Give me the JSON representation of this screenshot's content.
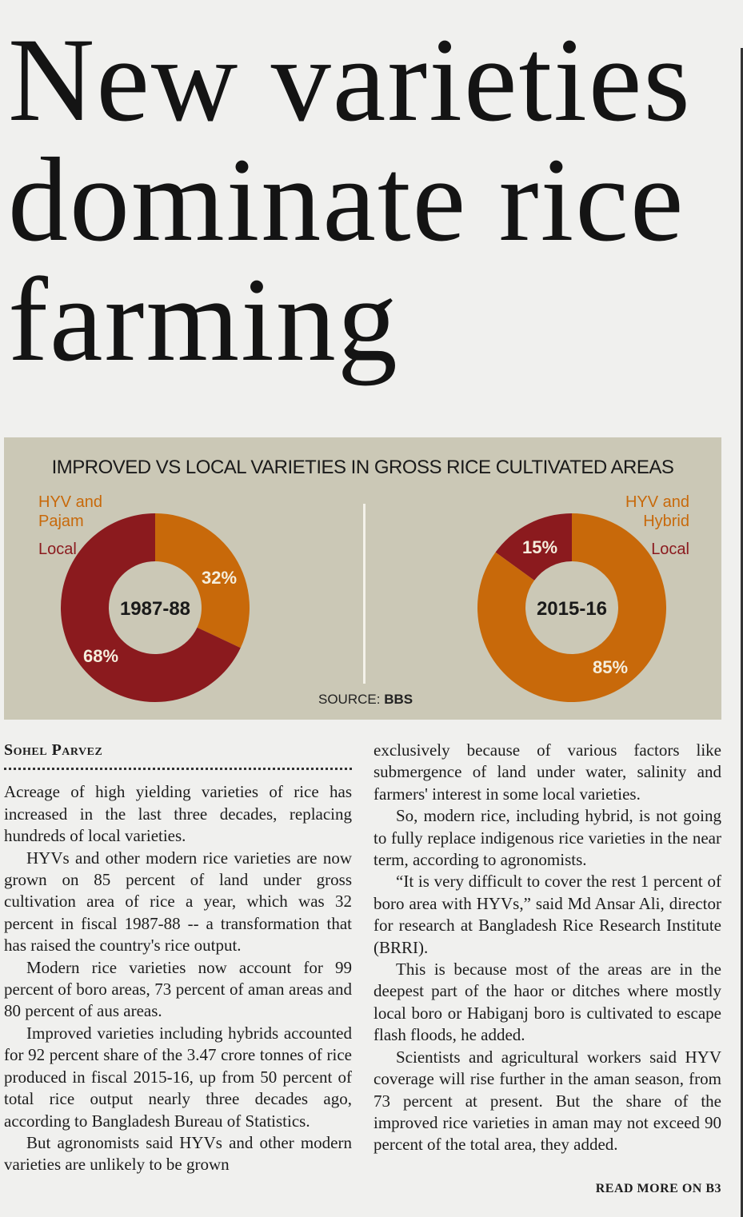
{
  "headline": "New varieties dominate rice farming",
  "chart_data": {
    "type": "pie",
    "title": "IMPROVED VS LOCAL VARIETIES IN GROSS RICE CULTIVATED AREAS",
    "source_label": "SOURCE:",
    "source": "BBS",
    "colors": {
      "improved": "#c8690a",
      "local": "#8b1a1e"
    },
    "charts": [
      {
        "period": "1987-88",
        "improved_label": "HYV and Pajam",
        "local_label": "Local",
        "improved": 32,
        "local": 68,
        "improved_text": "32%",
        "local_text": "68%"
      },
      {
        "period": "2015-16",
        "improved_label": "HYV and Hybrid",
        "local_label": "Local",
        "improved": 85,
        "local": 15,
        "improved_text": "85%",
        "local_text": "15%"
      }
    ]
  },
  "article": {
    "byline": "Sohel Parvez",
    "left_paragraphs": [
      "Acreage of high yielding varieties of rice has increased in the last three decades, replacing hundreds of local varieties.",
      "HYVs and other modern rice varieties are now grown on 85 percent of land under gross cultivation area of rice a year, which was 32 percent in fiscal 1987-88 -- a transformation that has raised the country's rice output.",
      "Modern rice varieties now account for 99 percent of boro areas, 73 percent of aman areas and 80 percent of aus areas.",
      "Improved varieties including hybrids accounted for 92 percent share of the 3.47 crore tonnes of rice produced in fiscal 2015-16, up from 50 percent of total rice output nearly three decades ago, according to Bangladesh Bureau of Statistics.",
      "But agronomists said HYVs and other modern varieties are unlikely to be grown"
    ],
    "right_paragraphs": [
      "exclusively because of various factors like submergence of land under water, salinity and farmers' interest in some local varieties.",
      "So, modern rice, including hybrid, is not going to fully replace indigenous rice varieties in the near term, according to agronomists.",
      "“It is very difficult to cover the rest 1 percent of boro area with HYVs,” said Md Ansar Ali, director for research at Bangladesh Rice Research Institute (BRRI).",
      "This is because most of the areas are in the deepest part of the haor or ditches where mostly local boro or Habiganj boro is cultivated to escape flash floods, he added.",
      "Scientists and agricultural workers said HYV coverage will rise further in the aman season, from 73 percent at present. But the share of the improved rice varieties in aman may not exceed 90 percent of the total area, they added."
    ],
    "read_more": "READ MORE ON B3"
  }
}
